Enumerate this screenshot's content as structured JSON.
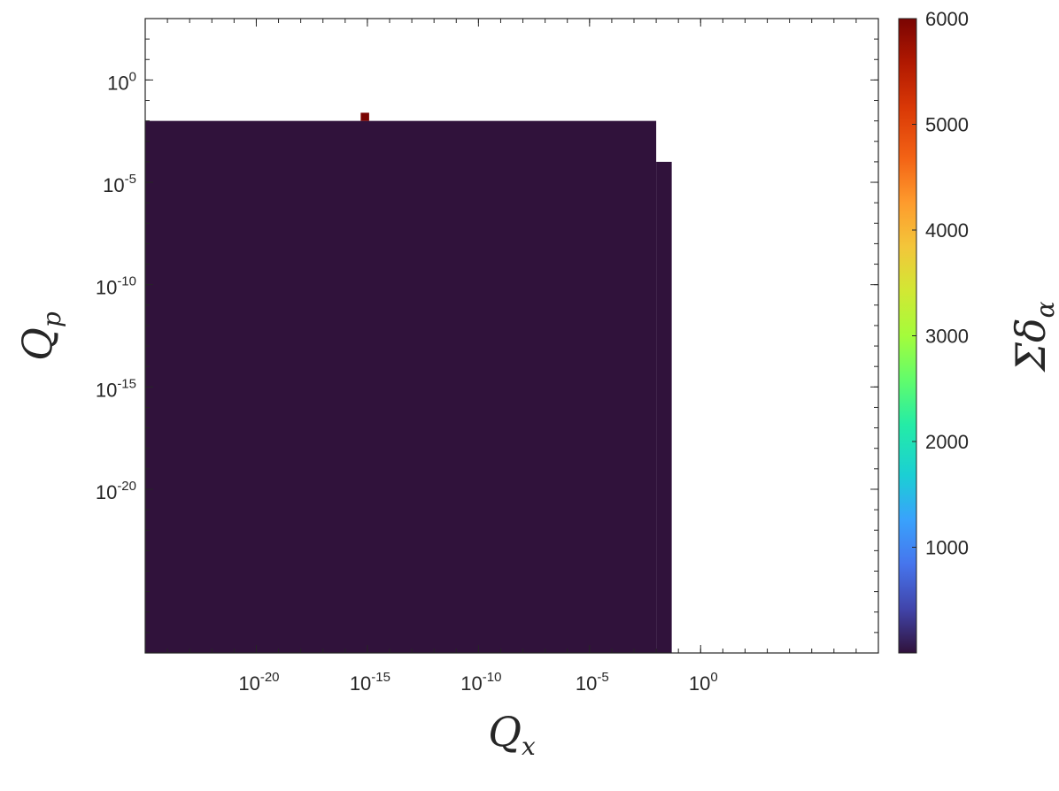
{
  "chart_data": {
    "type": "heatmap",
    "xlabel": "Q",
    "xlabel_sub": "x",
    "ylabel": "Q",
    "ylabel_sub": "p",
    "colorbar_label": "Σδ",
    "colorbar_label_sub": "α",
    "x_scale": "log",
    "y_scale": "log",
    "xlim": [
      1e-25,
      100000000.0
    ],
    "ylim": [
      1e-28,
      1000.0
    ],
    "x_ticks": [
      {
        "value": 1e-20,
        "base": "10",
        "exp": "-20"
      },
      {
        "value": 1e-15,
        "base": "10",
        "exp": "-15"
      },
      {
        "value": 1e-10,
        "base": "10",
        "exp": "-10"
      },
      {
        "value": 1e-05,
        "base": "10",
        "exp": "-5"
      },
      {
        "value": 1,
        "base": "10",
        "exp": "0"
      }
    ],
    "y_ticks": [
      {
        "value": 1,
        "base": "10",
        "exp": "0"
      },
      {
        "value": 1e-05,
        "base": "10",
        "exp": "-5"
      },
      {
        "value": 1e-10,
        "base": "10",
        "exp": "-10"
      },
      {
        "value": 1e-15,
        "base": "10",
        "exp": "-15"
      },
      {
        "value": 1e-20,
        "base": "10",
        "exp": "-20"
      }
    ],
    "color_range": [
      0,
      6000
    ],
    "colorbar_ticks": [
      "1000",
      "2000",
      "3000",
      "4000",
      "5000",
      "6000"
    ],
    "colormap": "turbo",
    "grid": false,
    "regions": [
      {
        "x": [
          1e-25,
          0.01
        ],
        "y": [
          1e-28,
          0.01
        ],
        "value": 0
      },
      {
        "x": [
          0.01,
          0.05
        ],
        "y": [
          1e-28,
          0.0001
        ],
        "value": 0
      }
    ],
    "cells": [
      {
        "x": [
          5e-16,
          1.2e-15
        ],
        "y": [
          0.01,
          0.025
        ],
        "value": 6000
      }
    ]
  }
}
